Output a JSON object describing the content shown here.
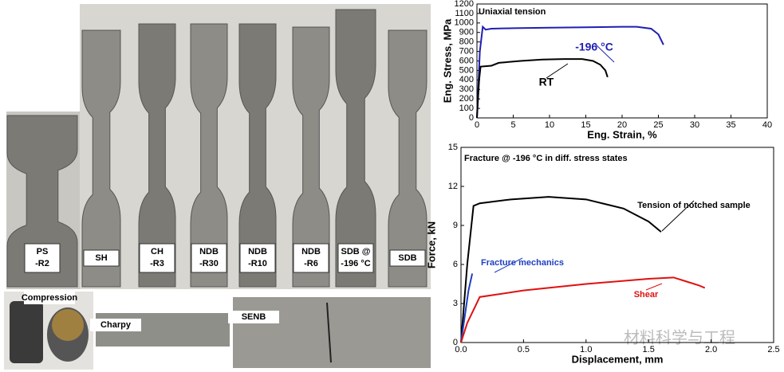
{
  "specimens": [
    {
      "label": [
        "PS",
        "-R2"
      ]
    },
    {
      "label": [
        "SH"
      ]
    },
    {
      "label": [
        "CH",
        "-R3"
      ]
    },
    {
      "label": [
        "NDB",
        "-R30"
      ]
    },
    {
      "label": [
        "NDB",
        "-R10"
      ]
    },
    {
      "label": [
        "NDB",
        "-R6"
      ]
    },
    {
      "label": [
        "SDB @",
        "-196 °C"
      ]
    },
    {
      "label": [
        "SDB"
      ]
    }
  ],
  "insets": [
    "Compression",
    "Charpy",
    "SENB"
  ],
  "watermark": "材料科学与工程",
  "chart_data": [
    {
      "type": "line",
      "title": "Uniaxial tension",
      "x_label": "Eng. Strain, %",
      "y_label": "Eng. Stress, MPa",
      "xlim": [
        0,
        40
      ],
      "xticks": [
        0,
        5,
        10,
        15,
        20,
        25,
        30,
        35,
        40
      ],
      "ylim": [
        0,
        1200
      ],
      "yticks": [
        0,
        100,
        200,
        300,
        400,
        500,
        600,
        700,
        800,
        900,
        1000,
        1100,
        1200
      ],
      "series": [
        {
          "name": "-196 °C",
          "color": "#1f1fb4",
          "x": [
            0,
            0.4,
            0.8,
            1.2,
            2,
            5,
            10,
            15,
            20,
            22,
            24,
            25,
            25.7
          ],
          "values": [
            0,
            700,
            960,
            930,
            940,
            945,
            950,
            955,
            960,
            960,
            940,
            880,
            770
          ]
        },
        {
          "name": "RT",
          "color": "#000000",
          "x": [
            0,
            0.3,
            0.5,
            2,
            3,
            6,
            9,
            12,
            14.5,
            16,
            17,
            17.7,
            18
          ],
          "values": [
            0,
            400,
            540,
            550,
            580,
            600,
            615,
            620,
            620,
            600,
            560,
            500,
            430
          ]
        }
      ]
    },
    {
      "type": "line",
      "title": "Fracture @ -196 °C in diff. stress states",
      "x_label": "Displacement, mm",
      "y_label": "Force, kN",
      "xlim": [
        0,
        2.5
      ],
      "xticks": [
        {
          "value": 0,
          "label": "0.0"
        },
        0.5,
        {
          "value": 1,
          "label": "1.0"
        },
        1.5,
        {
          "value": 2,
          "label": "2.0"
        },
        2.5
      ],
      "ylim": [
        0,
        15
      ],
      "yticks": [
        0,
        3,
        6,
        9,
        12,
        15
      ],
      "series": [
        {
          "name": "Tension of notched sample",
          "color": "#000000",
          "x": [
            0,
            0.05,
            0.1,
            0.15,
            0.4,
            0.7,
            1.0,
            1.3,
            1.5,
            1.6
          ],
          "values": [
            0,
            6,
            10.5,
            10.7,
            11,
            11.2,
            11,
            10.3,
            9.3,
            8.5
          ]
        },
        {
          "name": "Fracture mechanics",
          "color": "#1f3fbf",
          "x": [
            0,
            0.03,
            0.06,
            0.09
          ],
          "values": [
            0,
            2,
            4,
            5.3
          ]
        },
        {
          "name": "Shear",
          "color": "#e01010",
          "x": [
            0,
            0.05,
            0.1,
            0.15,
            0.5,
            1.0,
            1.5,
            1.7,
            1.8,
            1.9,
            1.95
          ],
          "values": [
            0,
            1.5,
            2.5,
            3.5,
            4,
            4.5,
            4.9,
            5,
            4.7,
            4.4,
            4.2
          ]
        }
      ]
    }
  ]
}
